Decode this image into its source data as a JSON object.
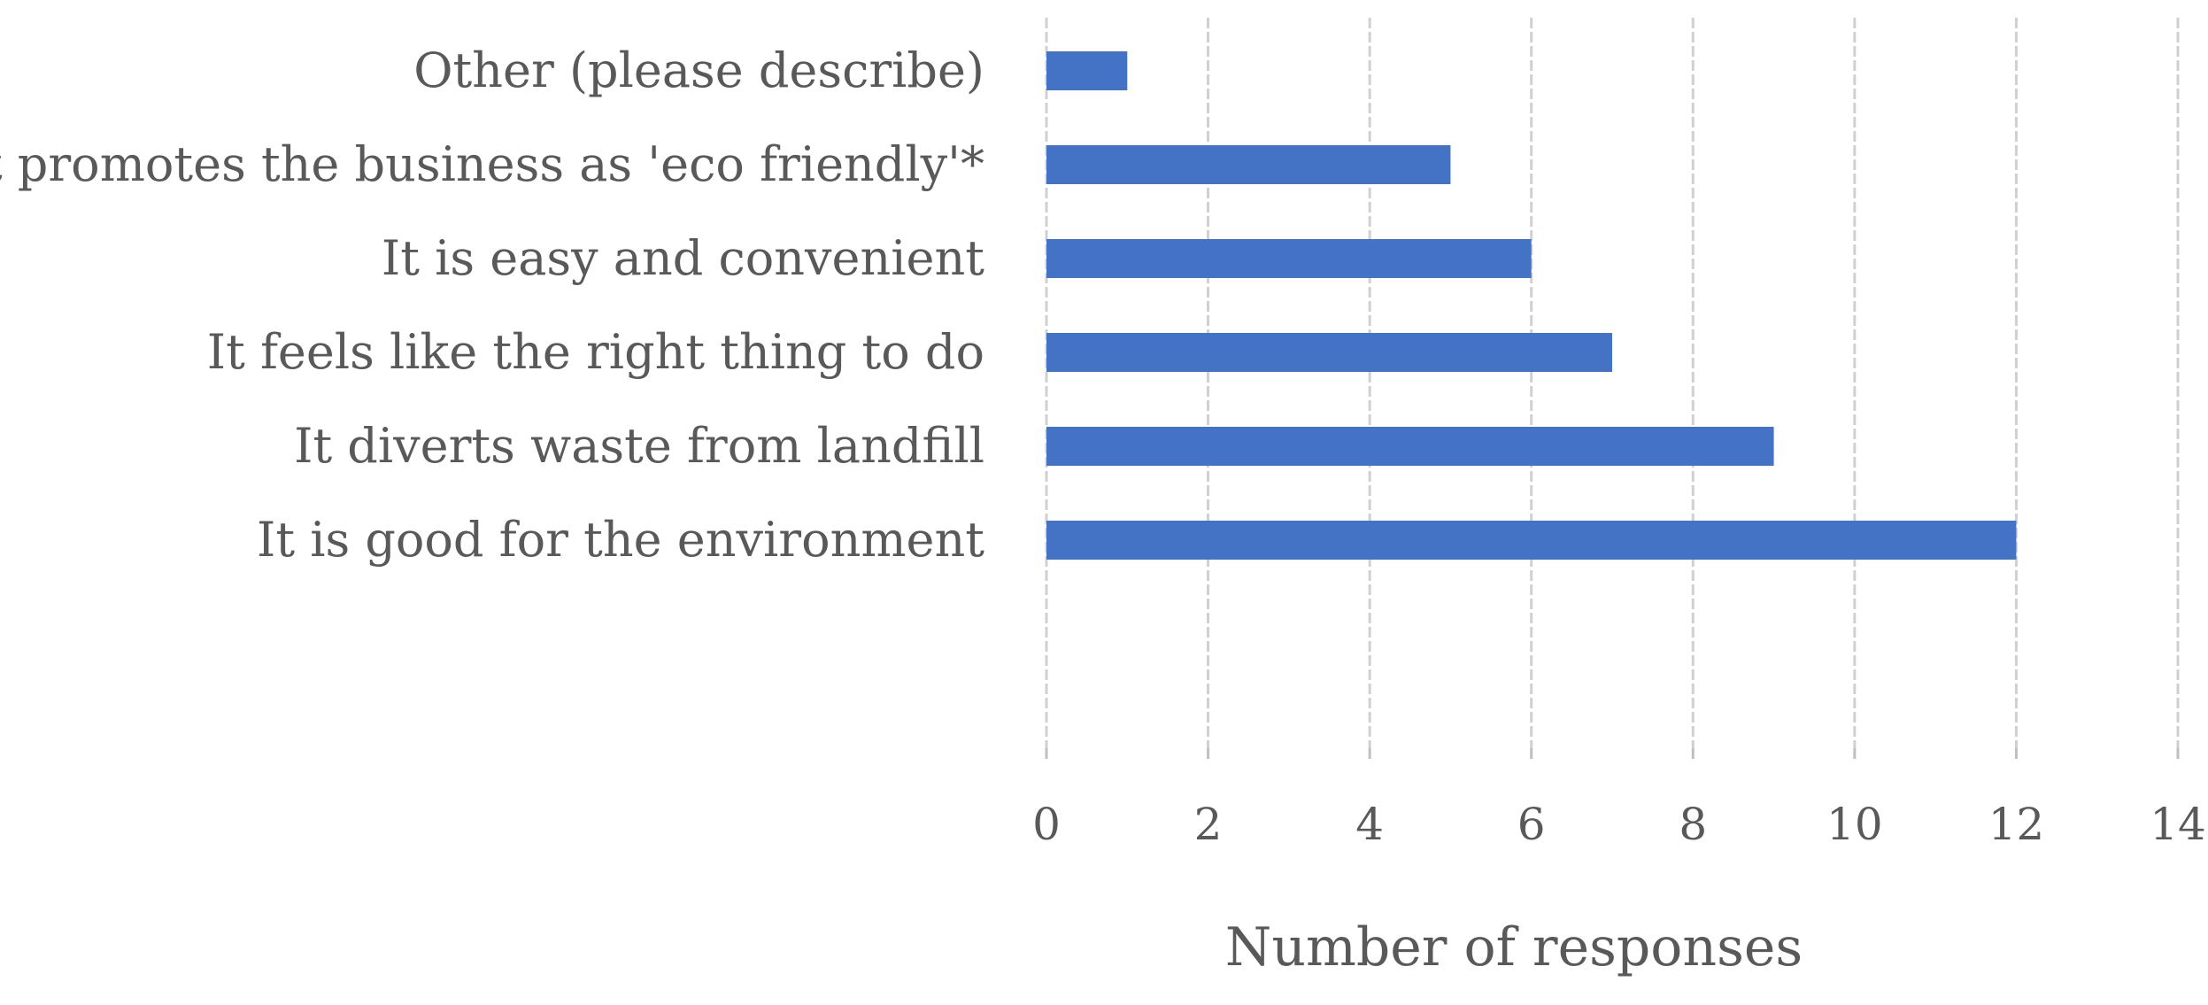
{
  "chart_data": {
    "type": "bar",
    "orientation": "horizontal",
    "categories": [
      "It is good for the environment",
      "It diverts waste from landfill",
      "It feels like the right thing to do",
      "It is easy and convenient",
      "It promotes the business as 'eco friendly'*",
      "Other (please describe)"
    ],
    "values": [
      12,
      9,
      7,
      6,
      5,
      1
    ],
    "xlabel": "Number of responses",
    "ylabel": "",
    "xlim": [
      0,
      14
    ],
    "xticks": [
      "0",
      "2",
      "4",
      "6",
      "8",
      "10",
      "12",
      "14"
    ],
    "grid": true,
    "legend": "none",
    "bar_color": "#4472C4",
    "text_color": "#595959",
    "grid_color": "#d0d0d0"
  }
}
